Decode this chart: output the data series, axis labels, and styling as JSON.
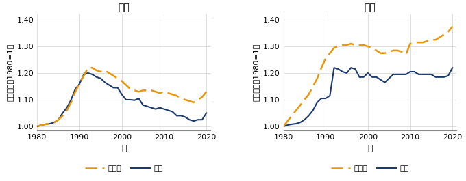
{
  "title_male": "男性",
  "title_female": "女性",
  "ylabel": "対数賃金（1980=1）",
  "xlabel": "年",
  "legend_noncollege": "非大卒",
  "legend_college": "大卒",
  "xlim": [
    1980,
    2021
  ],
  "ylim": [
    0.985,
    1.42
  ],
  "yticks": [
    1.0,
    1.1,
    1.2,
    1.3,
    1.4
  ],
  "ytick_labels": [
    "1.00",
    "1.10",
    "1.20",
    "1.30",
    "1.40"
  ],
  "xticks": [
    1980,
    1990,
    2000,
    2010,
    2020
  ],
  "color_noncollege": "#E8960A",
  "color_college": "#1A3A6B",
  "male_noncollege_x": [
    1980,
    1981,
    1982,
    1983,
    1984,
    1985,
    1986,
    1987,
    1988,
    1989,
    1990,
    1991,
    1992,
    1993,
    1994,
    1995,
    1996,
    1997,
    1998,
    1999,
    2000,
    2001,
    2002,
    2003,
    2004,
    2005,
    2006,
    2007,
    2008,
    2009,
    2010,
    2011,
    2012,
    2013,
    2014,
    2015,
    2016,
    2017,
    2018,
    2019,
    2020
  ],
  "male_noncollege_y": [
    1.0,
    1.005,
    1.008,
    1.01,
    1.015,
    1.025,
    1.04,
    1.06,
    1.09,
    1.13,
    1.16,
    1.19,
    1.22,
    1.22,
    1.21,
    1.205,
    1.21,
    1.2,
    1.19,
    1.18,
    1.17,
    1.155,
    1.14,
    1.135,
    1.13,
    1.135,
    1.135,
    1.135,
    1.13,
    1.125,
    1.13,
    1.125,
    1.12,
    1.115,
    1.105,
    1.1,
    1.095,
    1.09,
    1.1,
    1.11,
    1.13
  ],
  "male_college_x": [
    1980,
    1981,
    1982,
    1983,
    1984,
    1985,
    1986,
    1987,
    1988,
    1989,
    1990,
    1991,
    1992,
    1993,
    1994,
    1995,
    1996,
    1997,
    1998,
    1999,
    2000,
    2001,
    2002,
    2003,
    2004,
    2005,
    2006,
    2007,
    2008,
    2009,
    2010,
    2011,
    2012,
    2013,
    2014,
    2015,
    2016,
    2017,
    2018,
    2019,
    2020
  ],
  "male_college_y": [
    1.0,
    1.005,
    1.008,
    1.01,
    1.015,
    1.025,
    1.05,
    1.07,
    1.1,
    1.14,
    1.16,
    1.195,
    1.2,
    1.195,
    1.185,
    1.18,
    1.165,
    1.155,
    1.145,
    1.145,
    1.12,
    1.1,
    1.1,
    1.098,
    1.105,
    1.08,
    1.075,
    1.07,
    1.065,
    1.07,
    1.065,
    1.06,
    1.055,
    1.04,
    1.04,
    1.035,
    1.025,
    1.02,
    1.025,
    1.025,
    1.05
  ],
  "female_noncollege_x": [
    1980,
    1981,
    1982,
    1983,
    1984,
    1985,
    1986,
    1987,
    1988,
    1989,
    1990,
    1991,
    1992,
    1993,
    1994,
    1995,
    1996,
    1997,
    1998,
    1999,
    2000,
    2001,
    2002,
    2003,
    2004,
    2005,
    2006,
    2007,
    2008,
    2009,
    2010,
    2011,
    2012,
    2013,
    2014,
    2015,
    2016,
    2017,
    2018,
    2019,
    2020
  ],
  "female_noncollege_y": [
    1.0,
    1.02,
    1.04,
    1.06,
    1.08,
    1.1,
    1.12,
    1.15,
    1.18,
    1.22,
    1.255,
    1.275,
    1.295,
    1.3,
    1.305,
    1.305,
    1.31,
    1.305,
    1.305,
    1.305,
    1.3,
    1.295,
    1.285,
    1.275,
    1.275,
    1.28,
    1.285,
    1.285,
    1.28,
    1.27,
    1.31,
    1.315,
    1.315,
    1.315,
    1.32,
    1.325,
    1.325,
    1.335,
    1.345,
    1.355,
    1.375
  ],
  "female_college_x": [
    1980,
    1981,
    1982,
    1983,
    1984,
    1985,
    1986,
    1987,
    1988,
    1989,
    1990,
    1991,
    1992,
    1993,
    1994,
    1995,
    1996,
    1997,
    1998,
    1999,
    2000,
    2001,
    2002,
    2003,
    2004,
    2005,
    2006,
    2007,
    2008,
    2009,
    2010,
    2011,
    2012,
    2013,
    2014,
    2015,
    2016,
    2017,
    2018,
    2019,
    2020
  ],
  "female_college_y": [
    1.0,
    1.005,
    1.008,
    1.01,
    1.015,
    1.025,
    1.04,
    1.06,
    1.09,
    1.105,
    1.105,
    1.115,
    1.22,
    1.215,
    1.205,
    1.2,
    1.22,
    1.215,
    1.185,
    1.185,
    1.2,
    1.185,
    1.185,
    1.175,
    1.165,
    1.18,
    1.195,
    1.195,
    1.195,
    1.195,
    1.205,
    1.205,
    1.195,
    1.195,
    1.195,
    1.195,
    1.185,
    1.185,
    1.185,
    1.19,
    1.22
  ]
}
